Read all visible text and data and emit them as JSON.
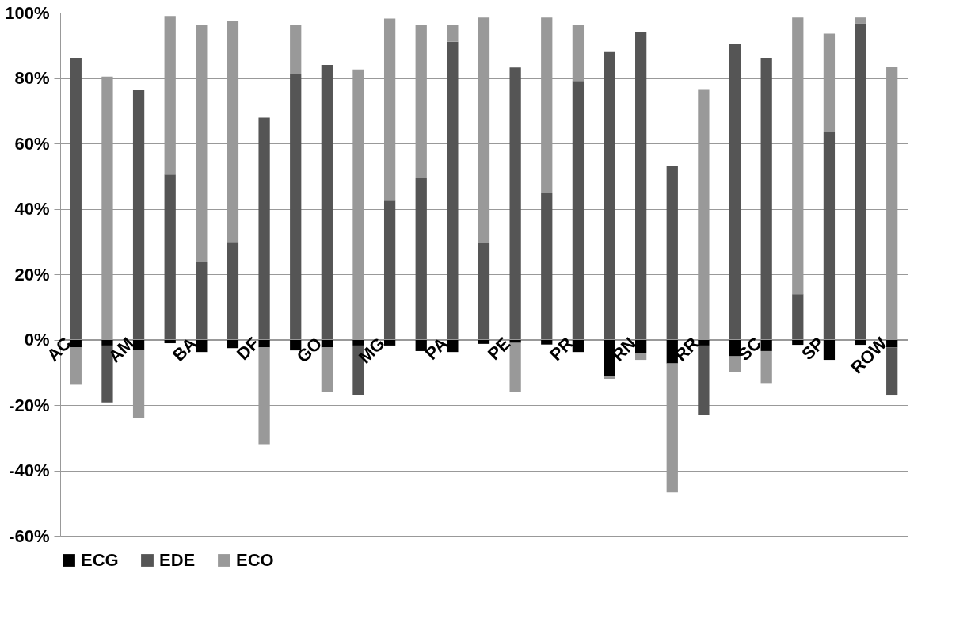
{
  "chart_data": {
    "type": "bar",
    "stacked": true,
    "categories": [
      "AC",
      null,
      "AM",
      null,
      "BA",
      null,
      "DF",
      null,
      "GO",
      null,
      "MG",
      null,
      "PA",
      null,
      "PE",
      null,
      "PR",
      null,
      "RN",
      null,
      "RR",
      null,
      "SC",
      null,
      "SP",
      null,
      "ROW"
    ],
    "series": [
      {
        "name": "ECG",
        "color": "#000000",
        "values": [
          -2.4,
          -1.8,
          -3.3,
          -1.1,
          -3.8,
          -2.6,
          -2.4,
          -3.3,
          -2.4,
          -1.8,
          -1.8,
          -3.5,
          -3.8,
          -1.3,
          -1.0,
          -1.5,
          -3.8,
          -11.1,
          -4.0,
          -7.3,
          -1.8,
          -5.1,
          -3.5,
          -1.6,
          -6.2,
          -1.6,
          -2.4
        ]
      },
      {
        "name": "EDE",
        "color": "#555555",
        "values": [
          86.2,
          -17.4,
          76.4,
          50.5,
          23.7,
          29.9,
          67.9,
          81.3,
          84.0,
          -15.3,
          42.7,
          49.5,
          91.1,
          29.7,
          83.2,
          44.9,
          79.1,
          88.2,
          94.1,
          53.0,
          -21.2,
          90.3,
          86.2,
          13.9,
          63.4,
          96.7,
          -14.7
        ]
      },
      {
        "name": "ECO",
        "color": "#999999",
        "values": [
          -11.4,
          80.4,
          -20.6,
          48.5,
          72.5,
          67.5,
          -29.6,
          14.9,
          -13.6,
          82.6,
          55.5,
          46.7,
          5.1,
          68.8,
          -15.0,
          53.6,
          17.1,
          -0.9,
          -2.2,
          -39.4,
          76.6,
          -4.9,
          -9.8,
          84.6,
          30.2,
          1.8,
          83.3
        ]
      }
    ],
    "ylim": [
      -60,
      100
    ],
    "yticks": [
      {
        "value": -60,
        "label": "-60%"
      },
      {
        "value": -40,
        "label": "-40%"
      },
      {
        "value": -20,
        "label": "-20%"
      },
      {
        "value": 0,
        "label": "0%"
      },
      {
        "value": 20,
        "label": "20%"
      },
      {
        "value": 40,
        "label": "40%"
      },
      {
        "value": 60,
        "label": "60%"
      },
      {
        "value": 80,
        "label": "80%"
      },
      {
        "value": 100,
        "label": "100%"
      }
    ],
    "grid": "y",
    "legend": "bottom"
  }
}
